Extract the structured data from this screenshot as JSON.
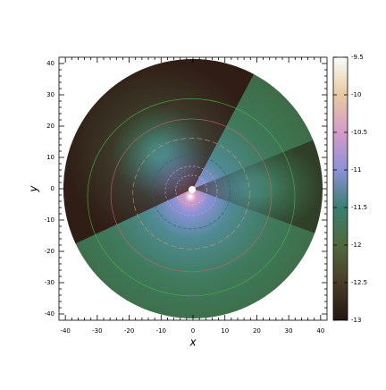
{
  "chart_data": {
    "type": "contour",
    "xlabel": "x",
    "ylabel": "y",
    "xlim": [
      -42,
      42
    ],
    "xticks": [
      -40,
      -30,
      -20,
      -10,
      0,
      10,
      20,
      30,
      40
    ],
    "ylim": [
      -42,
      42
    ],
    "yticks": [
      -40,
      -30,
      -20,
      -10,
      0,
      10,
      20,
      30,
      40
    ],
    "clim": [
      -13,
      -9.5
    ],
    "cticks": [
      -9.5,
      -10,
      -10.5,
      -11,
      -11.5,
      -12,
      -12.5,
      -13
    ],
    "colormap": [
      "#241612",
      "#4a3c28",
      "#4f6a3c",
      "#3a7f72",
      "#8a92d8",
      "#d69ac8",
      "#e8c9a2",
      "#f8fdf6"
    ]
  }
}
